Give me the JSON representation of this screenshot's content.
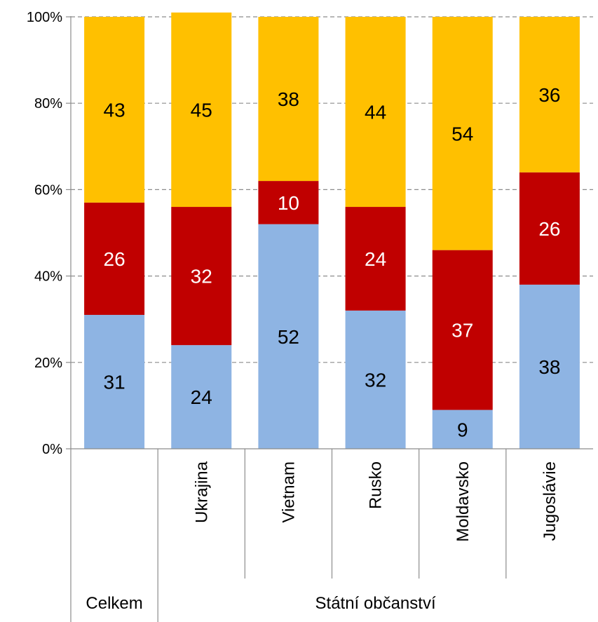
{
  "chart_data": {
    "type": "bar",
    "stacked": true,
    "percent": true,
    "categories": [
      "Celkem",
      "Ukrajina",
      "Vietnam",
      "Rusko",
      "Moldavsko",
      "Jugoslávie"
    ],
    "group_labels": [
      {
        "label": "Celkem",
        "span": [
          0,
          0
        ]
      },
      {
        "label": "Státní občanství",
        "span": [
          1,
          5
        ]
      }
    ],
    "series": [
      {
        "color": "#8EB4E3",
        "label_color": "#000000",
        "values": [
          31,
          24,
          52,
          32,
          9,
          38
        ]
      },
      {
        "color": "#C00000",
        "label_color": "#FFFFFF",
        "values": [
          26,
          32,
          10,
          24,
          37,
          26
        ]
      },
      {
        "color": "#FFC000",
        "label_color": "#000000",
        "values": [
          43,
          45,
          38,
          44,
          54,
          36
        ]
      }
    ],
    "y_ticks": [
      "0%",
      "20%",
      "40%",
      "60%",
      "80%",
      "100%"
    ],
    "ylim": [
      0,
      100
    ],
    "grid": true,
    "legend": "none"
  }
}
